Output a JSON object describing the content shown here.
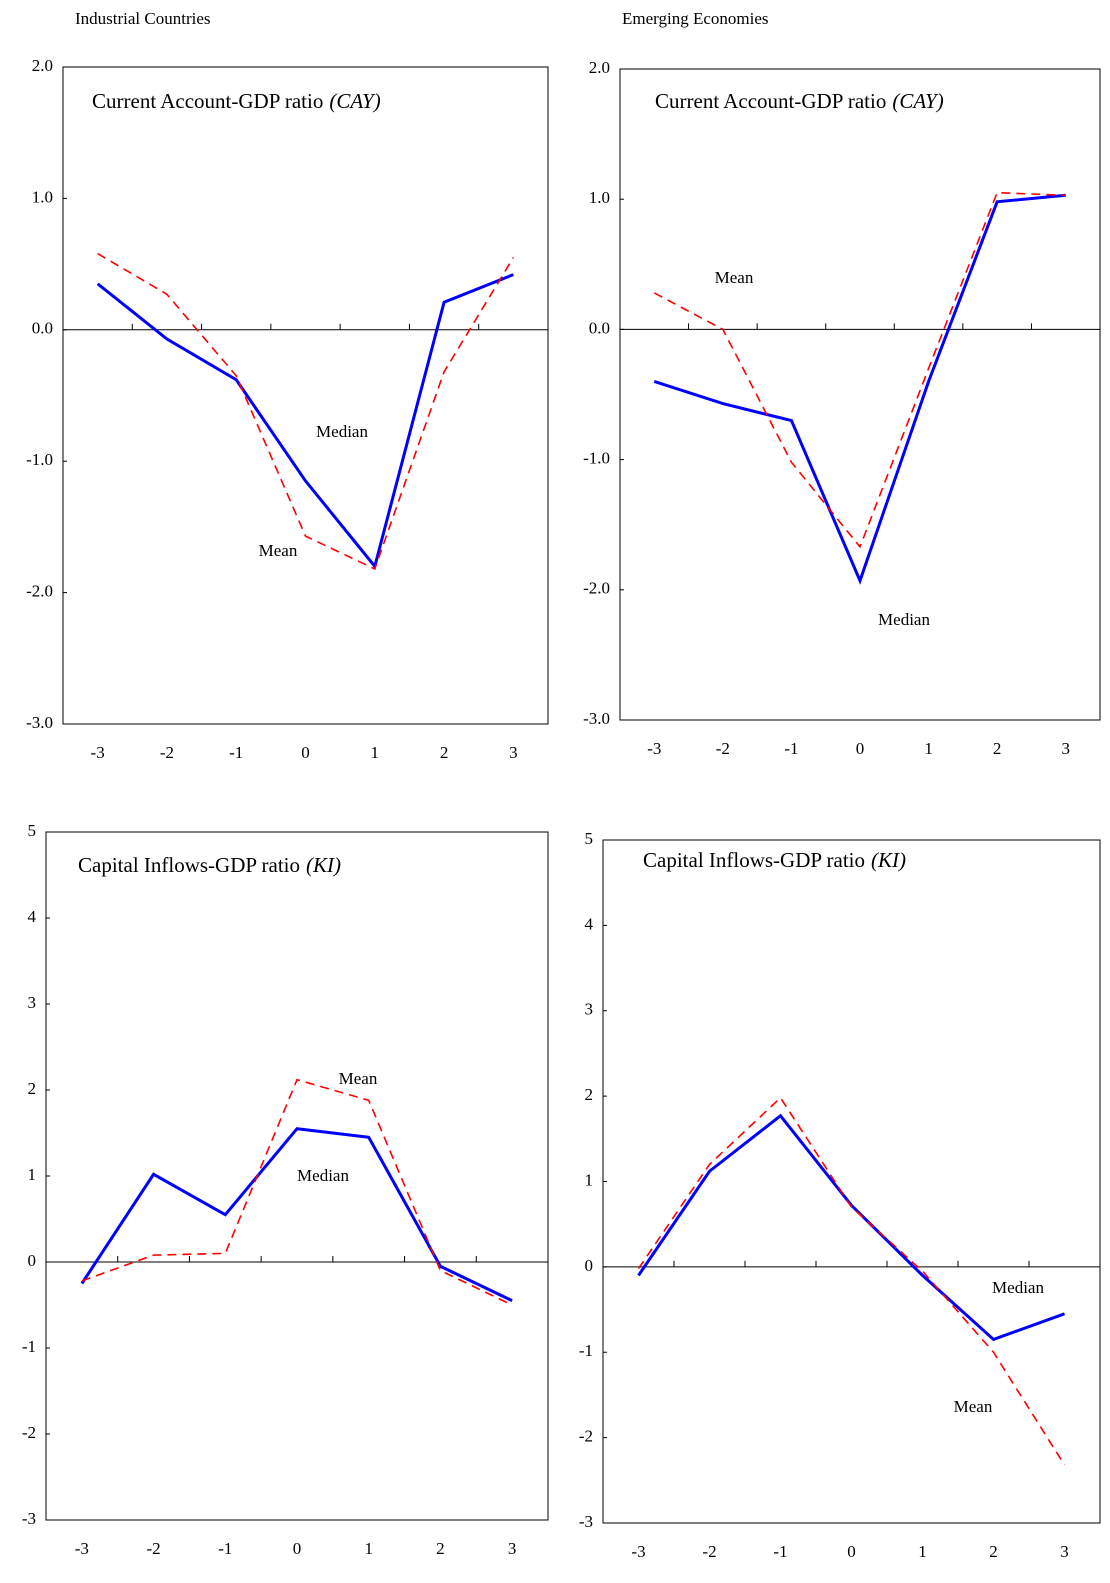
{
  "headers": [
    "Industrial Countries",
    "Emerging Economies"
  ],
  "chart_data": [
    {
      "type": "line",
      "title": "Current Account-GDP ratio",
      "title_abbrev": "(CAY)",
      "categories": [
        "-3",
        "-2",
        "-1",
        "0",
        "1",
        "2",
        "3"
      ],
      "series": [
        {
          "name": "Median",
          "color": "#0000ff",
          "style": "solid",
          "values": [
            0.35,
            -0.07,
            -0.38,
            -1.15,
            -1.8,
            0.21,
            0.42
          ]
        },
        {
          "name": "Mean",
          "color": "#ff0000",
          "style": "dashed",
          "values": [
            0.58,
            0.27,
            -0.35,
            -1.57,
            -1.82,
            -0.32,
            0.55
          ]
        }
      ],
      "ylim": [
        -3,
        2
      ],
      "yticks": [
        {
          "value": -3,
          "label": "-3.0"
        },
        {
          "value": -2,
          "label": "-2.0"
        },
        {
          "value": -1,
          "label": "-1.0"
        },
        {
          "value": 0,
          "label": "0.0"
        },
        {
          "value": 1,
          "label": "1.0"
        },
        {
          "value": 2,
          "label": "2.0"
        }
      ]
    },
    {
      "type": "line",
      "title": "Current Account-GDP ratio",
      "title_abbrev": "(CAY)",
      "categories": [
        "-3",
        "-2",
        "-1",
        "0",
        "1",
        "2",
        "3"
      ],
      "series": [
        {
          "name": "Median",
          "color": "#0000ff",
          "style": "solid",
          "values": [
            -0.4,
            -0.57,
            -0.7,
            -1.93,
            -0.4,
            0.98,
            1.03
          ]
        },
        {
          "name": "Mean",
          "color": "#ff0000",
          "style": "dashed",
          "values": [
            0.28,
            0.0,
            -1.02,
            -1.67,
            -0.3,
            1.05,
            1.03
          ]
        }
      ],
      "ylim": [
        -3,
        2
      ],
      "yticks": [
        {
          "value": -3,
          "label": "-3.0"
        },
        {
          "value": -2,
          "label": "-2.0"
        },
        {
          "value": -1,
          "label": "-1.0"
        },
        {
          "value": 0,
          "label": "0.0"
        },
        {
          "value": 1,
          "label": "1.0"
        },
        {
          "value": 2,
          "label": "2.0"
        }
      ]
    },
    {
      "type": "line",
      "title": "Capital Inflows-GDP ratio",
      "title_abbrev": "(KI)",
      "categories": [
        "-3",
        "-2",
        "-1",
        "0",
        "1",
        "2",
        "3"
      ],
      "series": [
        {
          "name": "Median",
          "color": "#0000ff",
          "style": "solid",
          "values": [
            -0.25,
            1.02,
            0.55,
            1.55,
            1.45,
            -0.05,
            -0.45
          ]
        },
        {
          "name": "Mean",
          "color": "#ff0000",
          "style": "dashed",
          "values": [
            -0.22,
            0.08,
            0.1,
            2.12,
            1.88,
            -0.1,
            -0.5
          ]
        }
      ],
      "ylim": [
        -3,
        5
      ],
      "yticks": [
        -3,
        -2,
        -1,
        0,
        1,
        2,
        3,
        4,
        5
      ]
    },
    {
      "type": "line",
      "title": "Capital Inflows-GDP ratio",
      "title_abbrev": "(KI)",
      "categories": [
        "-3",
        "-2",
        "-1",
        "0",
        "1",
        "2",
        "3"
      ],
      "series": [
        {
          "name": "Median",
          "color": "#0000ff",
          "style": "solid",
          "values": [
            -0.1,
            1.12,
            1.77,
            0.72,
            -0.1,
            -0.85,
            -0.55
          ]
        },
        {
          "name": "Mean",
          "color": "#ff0000",
          "style": "dashed",
          "values": [
            -0.02,
            1.2,
            1.98,
            0.7,
            -0.05,
            -1.0,
            -2.32
          ]
        }
      ],
      "ylim": [
        -3,
        5
      ],
      "yticks": [
        -3,
        -2,
        -1,
        0,
        1,
        2,
        3,
        4,
        5
      ]
    }
  ]
}
